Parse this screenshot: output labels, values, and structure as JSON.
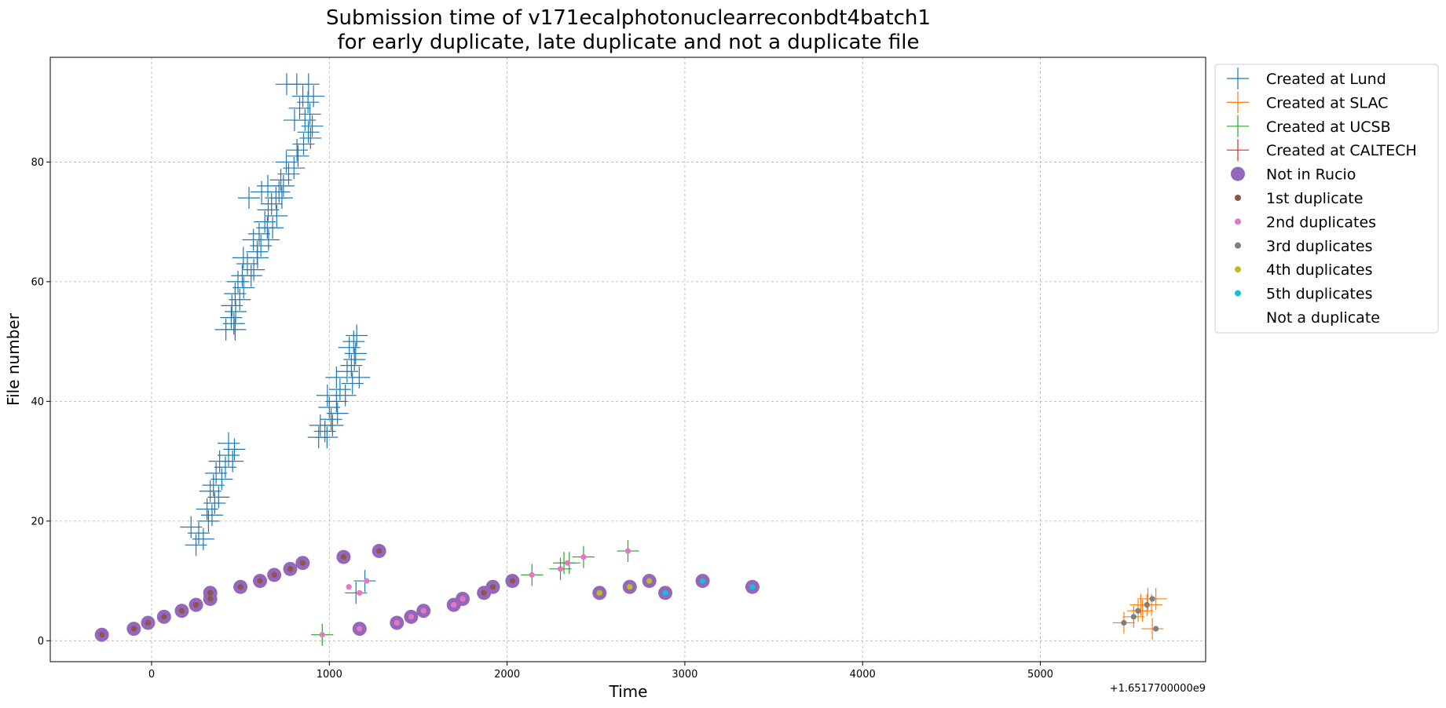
{
  "chart_data": {
    "type": "scatter",
    "title": [
      "Submission time of v171ecalphotonuclearreconbdt4batch1",
      "for early duplicate, late duplicate and not a duplicate file"
    ],
    "xlabel": "Time",
    "ylabel": "File number",
    "x_offset_label": "+1.6517700000e9",
    "xlim": [
      -570,
      5930
    ],
    "ylim": [
      -3.5,
      97.5
    ],
    "xticks": [
      0,
      1000,
      2000,
      3000,
      4000,
      5000
    ],
    "yticks": [
      0,
      20,
      40,
      60,
      80
    ],
    "grid": true,
    "legend_position": "outside upper right",
    "lund": {
      "color": "#1f77b4",
      "points": [
        [
          222,
          19
        ],
        [
          265,
          18
        ],
        [
          250,
          16
        ],
        [
          291,
          17
        ],
        [
          320,
          20
        ],
        [
          340,
          21
        ],
        [
          312,
          22
        ],
        [
          355,
          23
        ],
        [
          377,
          24
        ],
        [
          330,
          25
        ],
        [
          348,
          26
        ],
        [
          395,
          27
        ],
        [
          363,
          28
        ],
        [
          415,
          29
        ],
        [
          383,
          30
        ],
        [
          456,
          30
        ],
        [
          433,
          31
        ],
        [
          466,
          32
        ],
        [
          433,
          33
        ],
        [
          418,
          52
        ],
        [
          470,
          52
        ],
        [
          463,
          53
        ],
        [
          448,
          54
        ],
        [
          473,
          55
        ],
        [
          452,
          56
        ],
        [
          496,
          57
        ],
        [
          470,
          58
        ],
        [
          518,
          59
        ],
        [
          486,
          60
        ],
        [
          510,
          61
        ],
        [
          560,
          61
        ],
        [
          575,
          62
        ],
        [
          539,
          63
        ],
        [
          596,
          64
        ],
        [
          516,
          64
        ],
        [
          594,
          65
        ],
        [
          615,
          66
        ],
        [
          573,
          67
        ],
        [
          658,
          67
        ],
        [
          605,
          68
        ],
        [
          651,
          69
        ],
        [
          681,
          69
        ],
        [
          637,
          70
        ],
        [
          704,
          71
        ],
        [
          656,
          72
        ],
        [
          675,
          73
        ],
        [
          548,
          74
        ],
        [
          700,
          74
        ],
        [
          733,
          74
        ],
        [
          619,
          75
        ],
        [
          717,
          75
        ],
        [
          654,
          76
        ],
        [
          742,
          76
        ],
        [
          727,
          77
        ],
        [
          771,
          78
        ],
        [
          801,
          79
        ],
        [
          758,
          80
        ],
        [
          824,
          81
        ],
        [
          818,
          82
        ],
        [
          855,
          83
        ],
        [
          894,
          84
        ],
        [
          882,
          85
        ],
        [
          904,
          86
        ],
        [
          804,
          87
        ],
        [
          863,
          87
        ],
        [
          891,
          88
        ],
        [
          833,
          89
        ],
        [
          880,
          90
        ],
        [
          851,
          91
        ],
        [
          911,
          91
        ],
        [
          760,
          93
        ],
        [
          817,
          93
        ],
        [
          883,
          93
        ],
        [
          940,
          34
        ],
        [
          987,
          34
        ],
        [
          975,
          35
        ],
        [
          949,
          36
        ],
        [
          1018,
          36
        ],
        [
          1010,
          37
        ],
        [
          1046,
          38
        ],
        [
          1000,
          39
        ],
        [
          1040,
          40
        ],
        [
          989,
          41
        ],
        [
          1090,
          41
        ],
        [
          1060,
          42
        ],
        [
          1130,
          43
        ],
        [
          1040,
          44
        ],
        [
          1168,
          44
        ],
        [
          1100,
          45
        ],
        [
          1124,
          46
        ],
        [
          1141,
          47
        ],
        [
          1148,
          48
        ],
        [
          1112,
          49
        ],
        [
          1137,
          50
        ],
        [
          1154,
          51
        ],
        [
          1150,
          8
        ],
        [
          1200,
          10
        ]
      ]
    },
    "slac": {
      "color": "#ff7f0e",
      "points": [
        [
          5470,
          3
        ],
        [
          5525,
          4
        ],
        [
          5550,
          5
        ],
        [
          5565,
          6
        ],
        [
          5625,
          6
        ],
        [
          5650,
          7
        ],
        [
          5575,
          5
        ],
        [
          5600,
          6
        ],
        [
          5605,
          7
        ],
        [
          5630,
          2
        ]
      ]
    },
    "ucsb": {
      "color": "#2ca02c",
      "points": [
        [
          960,
          1
        ],
        [
          2140,
          11
        ],
        [
          2300,
          12
        ],
        [
          2320,
          13
        ],
        [
          2350,
          13
        ],
        [
          2430,
          14
        ],
        [
          2680,
          15
        ]
      ]
    },
    "not_in_rucio": {
      "color": "#9467bd",
      "points": [
        [
          -280,
          1
        ],
        [
          -100,
          2
        ],
        [
          -20,
          3
        ],
        [
          70,
          4
        ],
        [
          170,
          5
        ],
        [
          250,
          6
        ],
        [
          330,
          7
        ],
        [
          330,
          8
        ],
        [
          500,
          9
        ],
        [
          610,
          10
        ],
        [
          690,
          11
        ],
        [
          780,
          12
        ],
        [
          850,
          13
        ],
        [
          1080,
          14
        ],
        [
          1280,
          15
        ],
        [
          1170,
          2
        ],
        [
          1380,
          3
        ],
        [
          1460,
          4
        ],
        [
          1530,
          5
        ],
        [
          1700,
          6
        ],
        [
          1750,
          7
        ],
        [
          1870,
          8
        ],
        [
          1920,
          9
        ],
        [
          2030,
          10
        ],
        [
          2520,
          8
        ],
        [
          2690,
          9
        ],
        [
          2800,
          10
        ],
        [
          2890,
          8
        ],
        [
          3100,
          10
        ],
        [
          3380,
          9
        ]
      ]
    },
    "first_duplicate": {
      "color": "#8c564b",
      "points": [
        [
          -280,
          1
        ],
        [
          -100,
          2
        ],
        [
          -20,
          3
        ],
        [
          70,
          4
        ],
        [
          170,
          5
        ],
        [
          250,
          6
        ],
        [
          330,
          7
        ],
        [
          330,
          8
        ],
        [
          500,
          9
        ],
        [
          610,
          10
        ],
        [
          690,
          11
        ],
        [
          780,
          12
        ],
        [
          850,
          13
        ],
        [
          1080,
          14
        ],
        [
          1280,
          15
        ],
        [
          1870,
          8
        ],
        [
          1920,
          9
        ],
        [
          2030,
          10
        ]
      ]
    },
    "second_duplicates": {
      "color": "#e377c2",
      "points": [
        [
          960,
          1
        ],
        [
          1110,
          9
        ],
        [
          1170,
          8
        ],
        [
          1210,
          10
        ],
        [
          1170,
          2
        ],
        [
          1380,
          3
        ],
        [
          1460,
          4
        ],
        [
          1530,
          5
        ],
        [
          1700,
          6
        ],
        [
          1750,
          7
        ],
        [
          2140,
          11
        ],
        [
          2300,
          12
        ],
        [
          2340,
          13
        ],
        [
          2430,
          14
        ],
        [
          2680,
          15
        ]
      ]
    },
    "third_duplicates": {
      "color": "#7f7f7f",
      "points": [
        [
          5470,
          3
        ],
        [
          5525,
          4
        ],
        [
          5550,
          5
        ],
        [
          5600,
          6
        ],
        [
          5630,
          7
        ],
        [
          5650,
          2
        ]
      ]
    },
    "fourth_duplicates": {
      "color": "#bcbd22",
      "points": [
        [
          2520,
          8
        ],
        [
          2690,
          9
        ],
        [
          2800,
          10
        ]
      ]
    },
    "fifth_duplicates": {
      "color": "#17becf",
      "points": [
        [
          2890,
          8
        ],
        [
          3100,
          10
        ],
        [
          3380,
          9
        ]
      ]
    },
    "legend": [
      {
        "label": "Created at Lund",
        "kind": "cross",
        "color": "#1f77b4"
      },
      {
        "label": "Created at SLAC",
        "kind": "cross",
        "color": "#ff7f0e"
      },
      {
        "label": "Created at UCSB",
        "kind": "cross",
        "color": "#2ca02c"
      },
      {
        "label": "Created at CALTECH",
        "kind": "cross",
        "color": "#d62728"
      },
      {
        "label": "Not in Rucio",
        "kind": "big-dot",
        "color": "#9467bd"
      },
      {
        "label": "1st duplicate",
        "kind": "dot",
        "color": "#8c564b"
      },
      {
        "label": "2nd duplicates",
        "kind": "dot",
        "color": "#e377c2"
      },
      {
        "label": "3rd duplicates",
        "kind": "dot",
        "color": "#7f7f7f"
      },
      {
        "label": "4th duplicates",
        "kind": "dot",
        "color": "#bcbd22"
      },
      {
        "label": "5th duplicates",
        "kind": "dot",
        "color": "#17becf"
      },
      {
        "label": "Not a duplicate",
        "kind": "none",
        "color": "#ffffff"
      }
    ]
  }
}
